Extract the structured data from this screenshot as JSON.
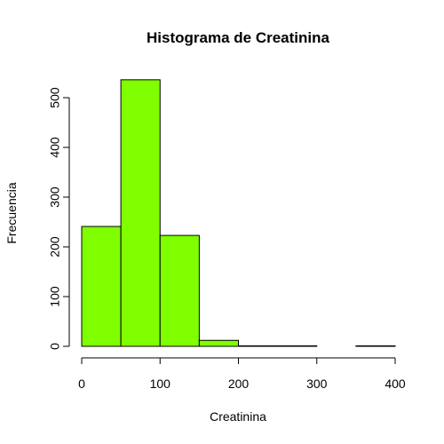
{
  "chart_data": {
    "type": "bar",
    "title": "Histograma de Creatinina",
    "xlabel": "Creatinina",
    "ylabel": "Frecuencia",
    "bins": [
      {
        "x0": 0,
        "x1": 50,
        "count": 241
      },
      {
        "x0": 50,
        "x1": 100,
        "count": 536
      },
      {
        "x0": 100,
        "x1": 150,
        "count": 223
      },
      {
        "x0": 150,
        "x1": 200,
        "count": 12
      },
      {
        "x0": 200,
        "x1": 250,
        "count": 1
      },
      {
        "x0": 250,
        "x1": 300,
        "count": 1
      },
      {
        "x0": 300,
        "x1": 350,
        "count": 0
      },
      {
        "x0": 350,
        "x1": 400,
        "count": 1
      }
    ],
    "xlim": [
      0,
      400
    ],
    "ylim": [
      0,
      550
    ],
    "xticks": [
      0,
      100,
      200,
      300,
      400
    ],
    "yticks": [
      0,
      100,
      200,
      300,
      400,
      500
    ],
    "bar_color": "#7FFF00",
    "grid": false,
    "legend": "none"
  }
}
